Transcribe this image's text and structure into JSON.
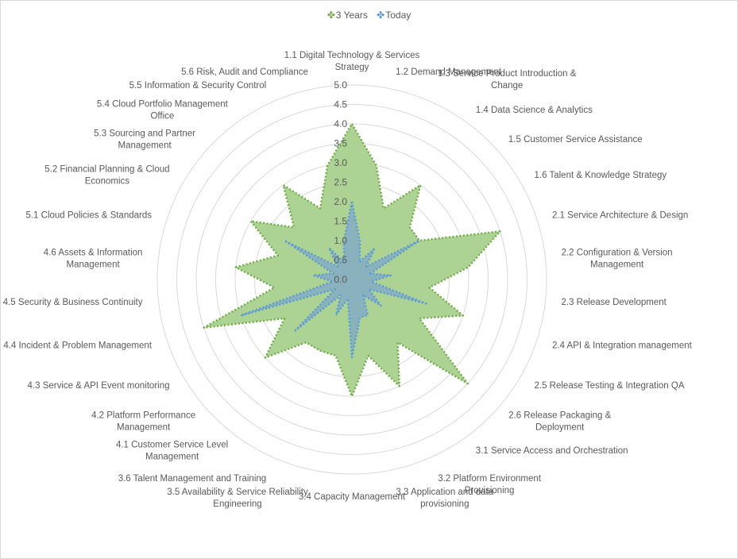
{
  "chart_data": {
    "type": "radar",
    "rmax": 5,
    "ticks": [
      "0.0",
      "0.5",
      "1.0",
      "1.5",
      "2.0",
      "2.5",
      "3.0",
      "3.5",
      "4.0",
      "4.5",
      "5.0"
    ],
    "categories": [
      [
        "1.1 Digital Technology & Services",
        "Strategy"
      ],
      [
        "1.2 Demand Management"
      ],
      [
        "1.3 Service Product Introduction &",
        "Change"
      ],
      [
        "1.4 Data Science & Analytics"
      ],
      [
        "1.5 Customer Service Assistance"
      ],
      [
        "1.6 Talent & Knowledge Strategy"
      ],
      [
        "2.1 Service Architecture & Design"
      ],
      [
        "2.2 Configuration & Version",
        "Management"
      ],
      [
        "2.3 Release Development"
      ],
      [
        "2.4 API & Integration management"
      ],
      [
        "2.5 Release Testing & Integration QA"
      ],
      [
        "2.6 Release Packaging  &",
        "Deployment"
      ],
      [
        "3.1 Service Access and Orchestration"
      ],
      [
        "3.2 Platform Environment",
        "Provisioning"
      ],
      [
        "3.3 Application and data",
        "provisioning"
      ],
      [
        "3.4 Capacity Management"
      ],
      [
        "3.5 Availability & Service Reliability",
        "Engineering"
      ],
      [
        "3.6 Talent Management and Training"
      ],
      [
        "4.1 Customer Service Level",
        "Management"
      ],
      [
        "4.2 Platform Performance",
        "Management"
      ],
      [
        "4.3 Service & API Event monitoring"
      ],
      [
        "4.4 Incident & Problem Management"
      ],
      [
        "4.5 Security & Business Continuity"
      ],
      [
        "4.6 Assets & Information",
        "Management"
      ],
      [
        "5.1 Cloud Policies & Standards"
      ],
      [
        "5.2 Financial Planning & Cloud",
        "Economics"
      ],
      [
        "5.3 Sourcing and Partner",
        "Management"
      ],
      [
        "5.4 Cloud Portfolio Management",
        "Office"
      ],
      [
        "5.5 Information & Security Control"
      ],
      [
        "5.6 Risk, Audit and Compliance"
      ]
    ],
    "series": [
      {
        "name": "3 Years",
        "color": "#70ad47",
        "fill": "#a9d18e",
        "values": [
          4.0,
          3.0,
          2.0,
          3.0,
          2.0,
          2.0,
          4.0,
          3.0,
          2.0,
          3.0,
          2.0,
          4.0,
          2.0,
          3.0,
          2.0,
          3.0,
          2.0,
          2.0,
          2.0,
          3.0,
          2.0,
          4.0,
          2.0,
          3.0,
          2.0,
          3.0,
          2.0,
          3.0,
          2.0,
          3.0
        ]
      },
      {
        "name": "Today",
        "color": "#5b9bd5",
        "fill": "#7fa9c8",
        "values": [
          2.0,
          1.0,
          0.5,
          1.0,
          0.5,
          2.0,
          0.5,
          1.0,
          0.5,
          2.0,
          0.5,
          1.0,
          0.5,
          1.0,
          1.0,
          2.0,
          0.5,
          1.0,
          0.5,
          2.0,
          0.5,
          3.0,
          0.5,
          1.0,
          0.5,
          2.0,
          0.5,
          1.0,
          0.5,
          1.0
        ]
      }
    ],
    "legend_position": "top"
  }
}
